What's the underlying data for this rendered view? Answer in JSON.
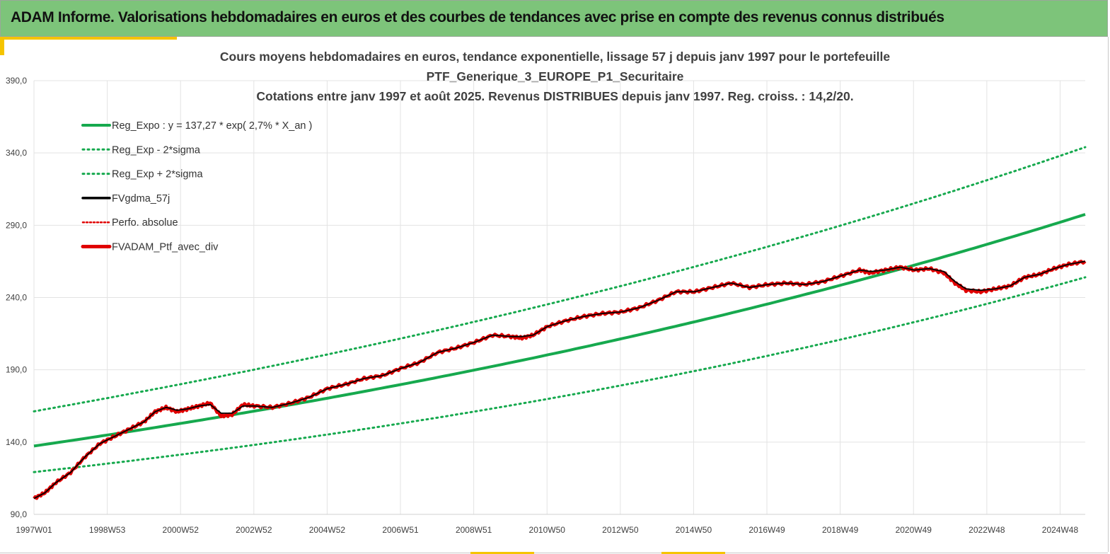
{
  "header": {
    "title": "ADAM Informe. Valorisations hebdomadaires en euros et des courbes de tendances avec prise en compte des revenus connus distribués"
  },
  "colors": {
    "header_bg": "#7dc47a",
    "accent": "#f5c400",
    "trend_green": "#16a94e",
    "smoothed_black": "#000000",
    "perf_red": "#e00000"
  },
  "chart_data": {
    "type": "line",
    "title_lines": [
      "Cours moyens hebdomadaires  en euros, tendance exponentielle, lissage 57 j depuis janv 1997 pour le portefeuille",
      "PTF_Generique_3_EUROPE_P1_Securitaire",
      "Cotations entre janv 1997 et août 2025. Revenus DISTRIBUES depuis janv 1997. Reg. croiss. : 14,2/20."
    ],
    "xlabel": "",
    "ylabel": "",
    "x_tick_labels": [
      "1997W01",
      "1998W53",
      "2000W52",
      "2002W52",
      "2004W52",
      "2006W51",
      "2008W51",
      "2010W50",
      "2012W50",
      "2014W50",
      "2016W49",
      "2018W49",
      "2020W49",
      "2022W48",
      "2024W48"
    ],
    "x_range_years": [
      1997.0,
      2025.65
    ],
    "y_tick_labels": [
      "90,0",
      "140,0",
      "190,0",
      "240,0",
      "290,0",
      "340,0",
      "390,0"
    ],
    "y_ticks": [
      90,
      140,
      190,
      240,
      290,
      340,
      390
    ],
    "ylim": [
      90,
      390
    ],
    "grid": true,
    "legend_placement": "top-left",
    "legend": [
      {
        "label": "Reg_Expo : y = 137,27 * exp( 2,7% *  X_an )",
        "color": "#16a94e",
        "style": "solid"
      },
      {
        "label": "Reg_Exp - 2*sigma",
        "color": "#16a94e",
        "style": "dotted"
      },
      {
        "label": "Reg_Exp + 2*sigma",
        "color": "#16a94e",
        "style": "dotted"
      },
      {
        "label": "FVgdma_57j",
        "color": "#000000",
        "style": "solid"
      },
      {
        "label": "Perfo. absolue",
        "color": "#e00000",
        "style": "dotted"
      },
      {
        "label": "FVADAM_Ptf_avec_div",
        "color": "#e00000",
        "style": "solid-thick"
      }
    ],
    "trend": {
      "a": 137.27,
      "rate": 0.027,
      "x_start": 1997.0
    },
    "bands": {
      "lower_offset_at_start": -18,
      "lower_at_end": 254,
      "upper_offset_at_start": 24,
      "upper_at_end": 344
    },
    "series": [
      {
        "name": "FVADAM_Ptf_avec_div",
        "x": [
          1997.0,
          1997.3,
          1997.6,
          1998.0,
          1998.4,
          1998.8,
          1999.2,
          1999.6,
          2000.0,
          2000.3,
          2000.6,
          2000.9,
          2001.2,
          2001.5,
          2001.8,
          2002.1,
          2002.4,
          2002.7,
          2003.0,
          2003.5,
          2004.0,
          2004.5,
          2005.0,
          2005.5,
          2006.0,
          2006.5,
          2007.0,
          2007.5,
          2008.0,
          2008.5,
          2009.0,
          2009.5,
          2010.0,
          2010.3,
          2010.6,
          2011.0,
          2011.5,
          2012.0,
          2012.5,
          2013.0,
          2013.5,
          2014.0,
          2014.5,
          2015.0,
          2015.5,
          2016.0,
          2016.5,
          2017.0,
          2017.5,
          2018.0,
          2018.5,
          2019.0,
          2019.5,
          2019.8,
          2020.2,
          2020.6,
          2021.0,
          2021.4,
          2021.8,
          2022.1,
          2022.4,
          2022.8,
          2023.2,
          2023.6,
          2024.0,
          2024.4,
          2024.8,
          2025.2,
          2025.65
        ],
        "values": [
          101,
          105,
          112,
          119,
          130,
          139,
          144,
          149,
          154,
          161,
          164,
          161,
          163,
          165,
          167,
          158,
          159,
          166,
          165,
          164,
          167,
          171,
          177,
          180,
          184,
          186,
          191,
          195,
          202,
          205,
          209,
          214,
          213,
          212,
          214,
          220,
          224,
          227,
          229,
          230,
          233,
          238,
          244,
          244,
          247,
          250,
          247,
          249,
          250,
          249,
          251,
          255,
          259,
          257,
          259,
          261,
          259,
          260,
          257,
          250,
          245,
          244,
          246,
          248,
          254,
          256,
          260,
          263,
          265
        ]
      },
      {
        "name": "FVgdma_57j",
        "x": [
          1997.0,
          1997.3,
          1997.6,
          1998.0,
          1998.4,
          1998.8,
          1999.2,
          1999.6,
          2000.0,
          2000.3,
          2000.6,
          2000.9,
          2001.2,
          2001.5,
          2001.8,
          2002.1,
          2002.4,
          2002.7,
          2003.0,
          2003.5,
          2004.0,
          2004.5,
          2005.0,
          2005.5,
          2006.0,
          2006.5,
          2007.0,
          2007.5,
          2008.0,
          2008.5,
          2009.0,
          2009.5,
          2010.0,
          2010.3,
          2010.6,
          2011.0,
          2011.5,
          2012.0,
          2012.5,
          2013.0,
          2013.5,
          2014.0,
          2014.5,
          2015.0,
          2015.5,
          2016.0,
          2016.5,
          2017.0,
          2017.5,
          2018.0,
          2018.5,
          2019.0,
          2019.5,
          2019.8,
          2020.2,
          2020.6,
          2021.0,
          2021.4,
          2021.8,
          2022.1,
          2022.4,
          2022.8,
          2023.2,
          2023.6,
          2024.0,
          2024.4,
          2024.8,
          2025.2,
          2025.65
        ],
        "values": [
          101,
          105,
          112,
          119,
          130,
          139,
          144,
          149,
          154,
          161,
          164,
          162,
          163,
          165,
          166,
          160,
          160,
          165,
          165,
          164,
          167,
          171,
          177,
          180,
          184,
          186,
          191,
          195,
          202,
          205,
          209,
          214,
          213,
          213,
          214,
          220,
          224,
          227,
          229,
          230,
          233,
          238,
          244,
          244,
          247,
          250,
          247,
          249,
          250,
          249,
          251,
          255,
          259,
          258,
          259,
          261,
          259,
          260,
          258,
          251,
          246,
          245,
          246,
          248,
          254,
          256,
          260,
          263,
          265
        ]
      }
    ]
  }
}
